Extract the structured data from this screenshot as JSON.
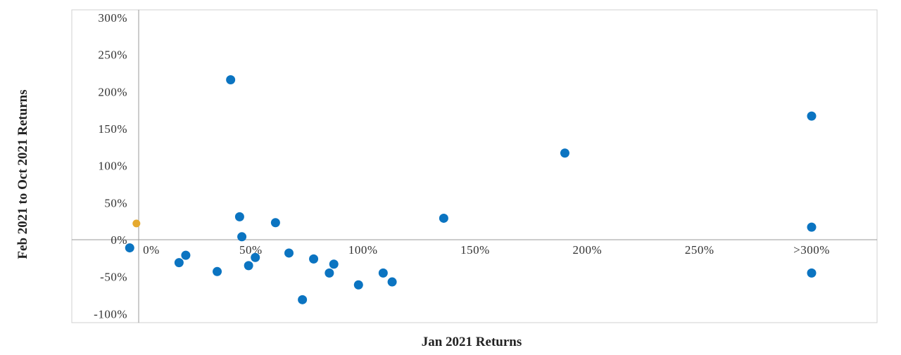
{
  "chart_data": {
    "type": "scatter",
    "title": "",
    "xlabel": "Jan 2021 Returns",
    "ylabel": "Feb 2021 to Oct 2021 Returns",
    "xlim": [
      -30,
      325
    ],
    "ylim": [
      -113,
      310
    ],
    "x_ticks": [
      {
        "value": 0,
        "label": "0%"
      },
      {
        "value": 50,
        "label": "50%"
      },
      {
        "value": 100,
        "label": "100%"
      },
      {
        "value": 150,
        "label": "150%"
      },
      {
        "value": 200,
        "label": "200%"
      },
      {
        "value": 250,
        "label": "250%"
      },
      {
        "value": 300,
        "label": ">300%"
      }
    ],
    "y_ticks": [
      {
        "value": 300,
        "label": "300%"
      },
      {
        "value": 250,
        "label": "250%"
      },
      {
        "value": 200,
        "label": "200%"
      },
      {
        "value": 150,
        "label": "150%"
      },
      {
        "value": 100,
        "label": "100%"
      },
      {
        "value": 50,
        "label": "50%"
      },
      {
        "value": 0,
        "label": "0%"
      },
      {
        "value": -50,
        "label": "-50%"
      },
      {
        "value": -100,
        "label": "-100%"
      }
    ],
    "grid": false,
    "legend": "none",
    "colors": {
      "primary": "#0b74c1",
      "highlight": "#e5a92e",
      "frame": "#d0d0d0",
      "axis": "#9a9a9a"
    },
    "series": [
      {
        "color": "#0b74c1",
        "points": [
          {
            "x": -4,
            "y": -11
          },
          {
            "x": 18,
            "y": -31
          },
          {
            "x": 21,
            "y": -21
          },
          {
            "x": 35,
            "y": -43
          },
          {
            "x": 41,
            "y": 216
          },
          {
            "x": 45,
            "y": 31
          },
          {
            "x": 46,
            "y": 4
          },
          {
            "x": 49,
            "y": -35
          },
          {
            "x": 52,
            "y": -24
          },
          {
            "x": 61,
            "y": 23
          },
          {
            "x": 67,
            "y": -18
          },
          {
            "x": 73,
            "y": -81
          },
          {
            "x": 78,
            "y": -26
          },
          {
            "x": 85,
            "y": -45
          },
          {
            "x": 87,
            "y": -33
          },
          {
            "x": 98,
            "y": -61
          },
          {
            "x": 109,
            "y": -45
          },
          {
            "x": 113,
            "y": -57
          },
          {
            "x": 136,
            "y": 29
          },
          {
            "x": 190,
            "y": 117
          },
          {
            "x": 300,
            "y": 167
          },
          {
            "x": 300,
            "y": 17
          },
          {
            "x": 300,
            "y": -45
          }
        ]
      },
      {
        "color": "#e5a92e",
        "points": [
          {
            "x": -1,
            "y": 22
          }
        ]
      }
    ]
  }
}
